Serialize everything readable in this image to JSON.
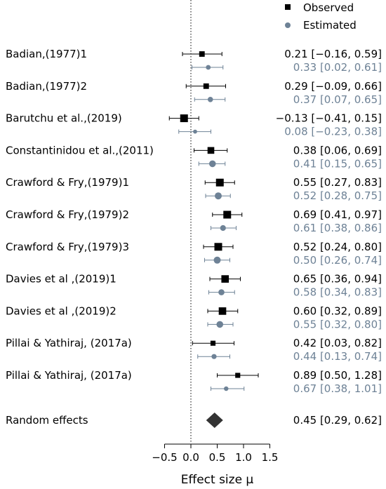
{
  "chart_data": {
    "type": "forest",
    "xlabel": "Effect size μ",
    "xlim": [
      -0.5,
      1.5
    ],
    "xticks": [
      -0.5,
      0.0,
      0.5,
      1.0,
      1.5
    ],
    "xtick_labels": [
      "−0.5",
      "0.0",
      "0.5",
      "1.0",
      "1.5"
    ],
    "reference_line": 0,
    "legend": {
      "position": "top-right",
      "items": [
        {
          "label": "Observed",
          "marker": "square",
          "color": "#000000"
        },
        {
          "label": "Estimated",
          "marker": "circle",
          "color": "#6e8296"
        }
      ]
    },
    "colors": {
      "observed": "#000000",
      "estimated": "#6e8296",
      "pooled": "#333333"
    },
    "studies": [
      {
        "name": "Badian,(1977)1",
        "observed": {
          "est": 0.21,
          "lo": -0.16,
          "hi": 0.59,
          "text": "0.21 [−0.16, 0.59]",
          "weight": 0.55
        },
        "estimated": {
          "est": 0.33,
          "lo": 0.02,
          "hi": 0.61,
          "text": "0.33 [0.02, 0.61]",
          "weight": 0.55
        }
      },
      {
        "name": "Badian,(1977)2",
        "observed": {
          "est": 0.29,
          "lo": -0.09,
          "hi": 0.66,
          "text": "0.29 [−0.09, 0.66]",
          "weight": 0.55
        },
        "estimated": {
          "est": 0.37,
          "lo": 0.07,
          "hi": 0.65,
          "text": "0.37 [0.07, 0.65]",
          "weight": 0.65
        }
      },
      {
        "name": "Barutchu et al.,(2019)",
        "observed": {
          "est": -0.13,
          "lo": -0.41,
          "hi": 0.15,
          "text": "−0.13 [−0.41, 0.15]",
          "weight": 1.0
        },
        "estimated": {
          "est": 0.08,
          "lo": -0.23,
          "hi": 0.38,
          "text": "0.08 [−0.23, 0.38]",
          "weight": 0.4
        }
      },
      {
        "name": "Constantinidou et al.,(2011)",
        "observed": {
          "est": 0.38,
          "lo": 0.06,
          "hi": 0.69,
          "text": "0.38 [0.06, 0.69]",
          "weight": 0.8
        },
        "estimated": {
          "est": 0.41,
          "lo": 0.15,
          "hi": 0.65,
          "text": "0.41 [0.15, 0.65]",
          "weight": 0.95
        }
      },
      {
        "name": "Crawford & Fry,(1979)1",
        "observed": {
          "est": 0.55,
          "lo": 0.27,
          "hi": 0.83,
          "text": "0.55 [0.27, 0.83]",
          "weight": 1.0
        },
        "estimated": {
          "est": 0.52,
          "lo": 0.28,
          "hi": 0.75,
          "text": "0.52 [0.28, 0.75]",
          "weight": 1.0
        }
      },
      {
        "name": "Crawford & Fry,(1979)2",
        "observed": {
          "est": 0.69,
          "lo": 0.41,
          "hi": 0.97,
          "text": "0.69 [0.41, 0.97]",
          "weight": 1.0
        },
        "estimated": {
          "est": 0.61,
          "lo": 0.38,
          "hi": 0.86,
          "text": "0.61 [0.38, 0.86]",
          "weight": 0.75
        }
      },
      {
        "name": "Crawford & Fry,(1979)3",
        "observed": {
          "est": 0.52,
          "lo": 0.24,
          "hi": 0.8,
          "text": "0.52 [0.24, 0.80]",
          "weight": 1.0
        },
        "estimated": {
          "est": 0.5,
          "lo": 0.26,
          "hi": 0.74,
          "text": "0.50 [0.26, 0.74]",
          "weight": 1.0
        }
      },
      {
        "name": "Davies et al ,(2019)1",
        "observed": {
          "est": 0.65,
          "lo": 0.36,
          "hi": 0.94,
          "text": "0.65 [0.36, 0.94]",
          "weight": 0.95
        },
        "estimated": {
          "est": 0.58,
          "lo": 0.34,
          "hi": 0.83,
          "text": "0.58 [0.34, 0.83]",
          "weight": 0.8
        }
      },
      {
        "name": "Davies et al ,(2019)2",
        "observed": {
          "est": 0.6,
          "lo": 0.32,
          "hi": 0.89,
          "text": "0.60 [0.32, 0.89]",
          "weight": 0.95
        },
        "estimated": {
          "est": 0.55,
          "lo": 0.32,
          "hi": 0.8,
          "text": "0.55 [0.32, 0.80]",
          "weight": 0.95
        }
      },
      {
        "name": "Pillai & Yathiraj, (2017a)",
        "observed": {
          "est": 0.42,
          "lo": 0.03,
          "hi": 0.82,
          "text": "0.42 [0.03, 0.82]",
          "weight": 0.45
        },
        "estimated": {
          "est": 0.44,
          "lo": 0.13,
          "hi": 0.74,
          "text": "0.44 [0.13, 0.74]",
          "weight": 0.6
        }
      },
      {
        "name": "Pillai & Yathiraj, (2017a)",
        "observed": {
          "est": 0.89,
          "lo": 0.5,
          "hi": 1.28,
          "text": "0.89 [0.50, 1.28]",
          "weight": 0.45
        },
        "estimated": {
          "est": 0.67,
          "lo": 0.38,
          "hi": 1.01,
          "text": "0.67 [0.38, 1.01]",
          "weight": 0.5
        }
      }
    ],
    "pooled": {
      "name": "Random effects",
      "est": 0.45,
      "lo": 0.29,
      "hi": 0.62,
      "text": "0.45 [0.29, 0.62]"
    }
  }
}
